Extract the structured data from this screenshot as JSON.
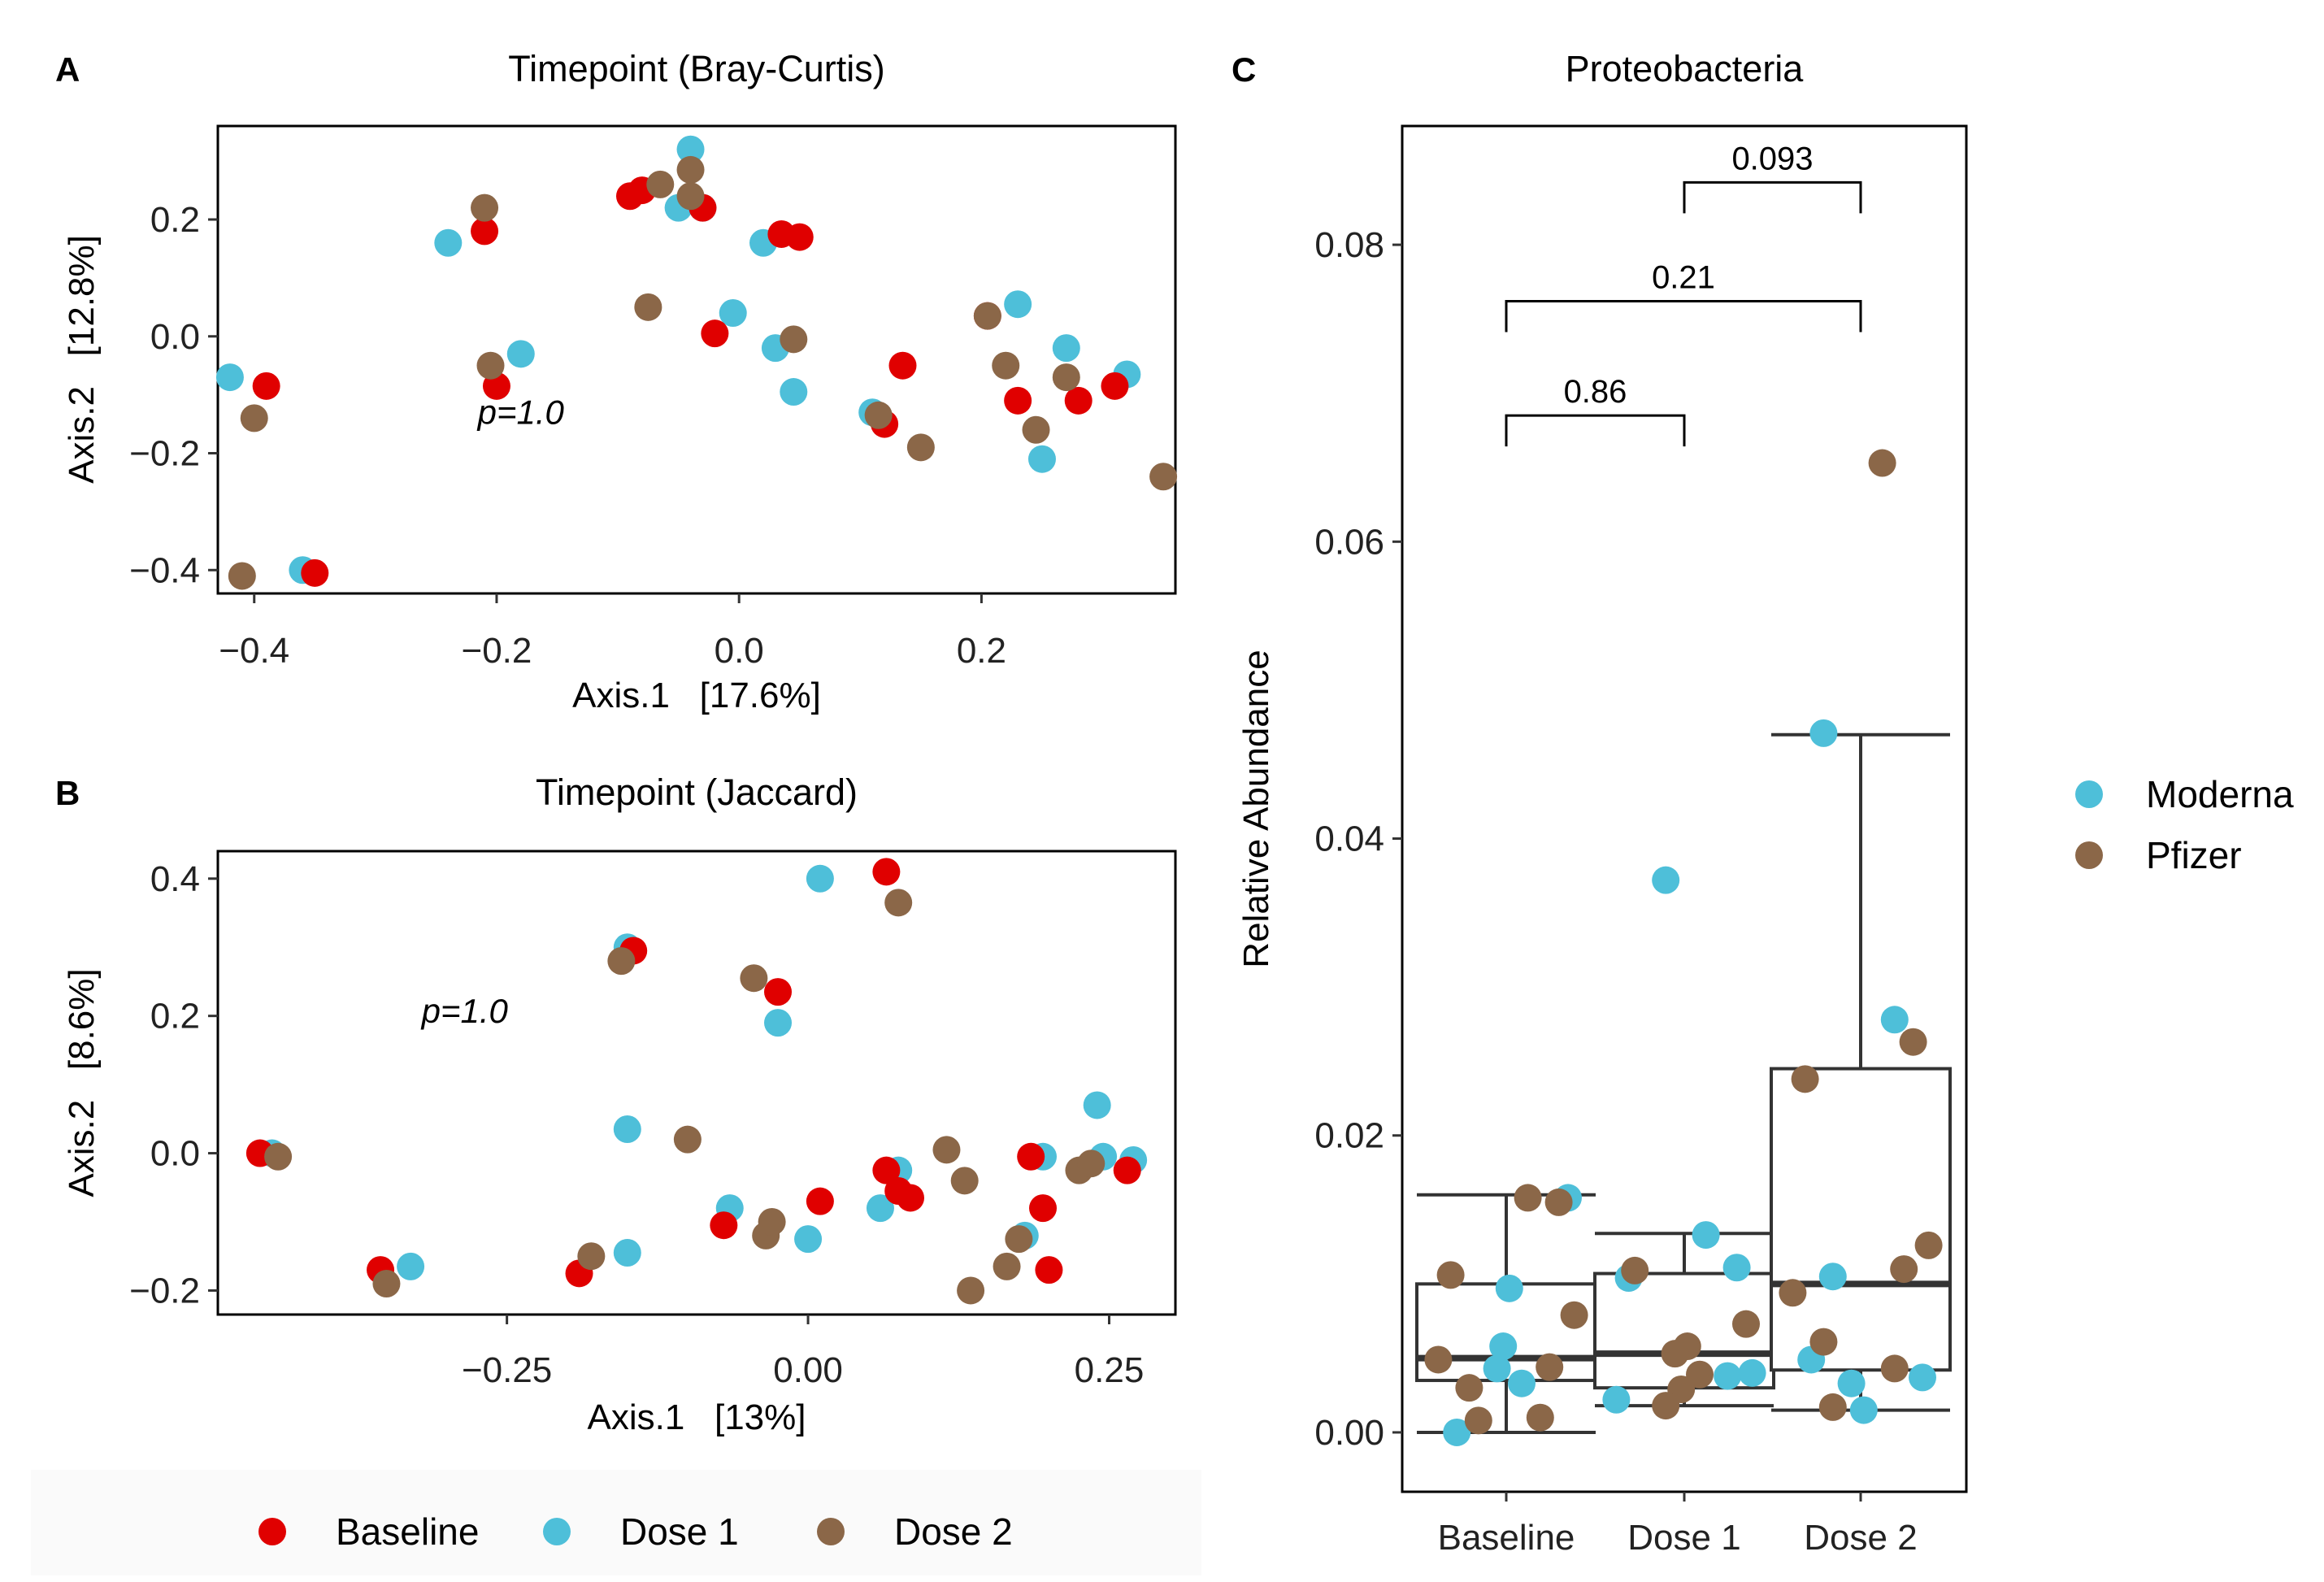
{
  "colors": {
    "Baseline": "#e00000",
    "Dose 1": "#4ebfd9",
    "Dose 2": "#8b6748",
    "Moderna": "#4ebfd9",
    "Pfizer": "#8b6748"
  },
  "legend_timepoint": [
    "Baseline",
    "Dose 1",
    "Dose 2"
  ],
  "legend_vaccine": [
    "Moderna",
    "Pfizer"
  ],
  "chart_data": [
    {
      "panel": "A",
      "type": "scatter",
      "title": "Timepoint (Bray-Curtis)",
      "xlabel": "Axis.1   [17.6%]",
      "ylabel": "Axis.2   [12.8%]",
      "xlim": [
        -0.43,
        0.36
      ],
      "ylim": [
        -0.44,
        0.36
      ],
      "xticks": [
        -0.4,
        -0.2,
        0.0,
        0.2
      ],
      "xtick_labels": [
        "−0.4",
        "−0.2",
        "0.0",
        "0.2"
      ],
      "yticks": [
        -0.4,
        -0.2,
        0.0,
        0.2
      ],
      "ytick_labels": [
        "−0.4",
        "−0.2",
        "0.0",
        "0.2"
      ],
      "annotation": "p=1.0",
      "annotation_at": [
        -0.18,
        -0.15
      ],
      "series": [
        {
          "name": "Dose 1",
          "points": [
            [
              -0.42,
              -0.07
            ],
            [
              -0.36,
              -0.4
            ],
            [
              -0.24,
              0.16
            ],
            [
              -0.18,
              -0.03
            ],
            [
              -0.04,
              0.32
            ],
            [
              -0.05,
              0.22
            ],
            [
              -0.03,
              0.22
            ],
            [
              -0.005,
              0.04
            ],
            [
              0.02,
              0.16
            ],
            [
              0.03,
              -0.02
            ],
            [
              0.045,
              -0.095
            ],
            [
              0.11,
              -0.13
            ],
            [
              0.23,
              0.055
            ],
            [
              0.27,
              -0.02
            ],
            [
              0.32,
              -0.065
            ],
            [
              0.25,
              -0.21
            ]
          ]
        },
        {
          "name": "Baseline",
          "points": [
            [
              -0.39,
              -0.085
            ],
            [
              -0.35,
              -0.405
            ],
            [
              -0.21,
              0.18
            ],
            [
              -0.2,
              -0.085
            ],
            [
              -0.09,
              0.24
            ],
            [
              -0.08,
              0.25
            ],
            [
              -0.03,
              0.22
            ],
            [
              -0.02,
              0.005
            ],
            [
              0.035,
              0.175
            ],
            [
              0.05,
              0.17
            ],
            [
              0.12,
              -0.15
            ],
            [
              0.135,
              -0.05
            ],
            [
              0.205,
              0.035
            ],
            [
              0.23,
              -0.11
            ],
            [
              0.28,
              -0.11
            ],
            [
              0.31,
              -0.085
            ]
          ]
        },
        {
          "name": "Dose 2",
          "points": [
            [
              -0.41,
              -0.41
            ],
            [
              -0.4,
              -0.14
            ],
            [
              -0.21,
              0.22
            ],
            [
              -0.205,
              -0.05
            ],
            [
              -0.075,
              0.05
            ],
            [
              -0.065,
              0.26
            ],
            [
              -0.04,
              0.24
            ],
            [
              -0.04,
              0.285
            ],
            [
              0.045,
              -0.005
            ],
            [
              0.115,
              -0.135
            ],
            [
              0.15,
              -0.19
            ],
            [
              0.205,
              0.035
            ],
            [
              0.22,
              -0.05
            ],
            [
              0.245,
              -0.16
            ],
            [
              0.27,
              -0.07
            ],
            [
              0.35,
              -0.24
            ]
          ]
        }
      ]
    },
    {
      "panel": "B",
      "type": "scatter",
      "title": "Timepoint (Jaccard)",
      "xlabel": "Axis.1   [13%]",
      "ylabel": "Axis.2   [8.6%]",
      "xlim": [
        -0.49,
        0.305
      ],
      "ylim": [
        -0.235,
        0.44
      ],
      "xticks": [
        -0.25,
        0.0,
        0.25
      ],
      "xtick_labels": [
        "−0.25",
        "0.00",
        "0.25"
      ],
      "yticks": [
        -0.2,
        0.0,
        0.2,
        0.4
      ],
      "ytick_labels": [
        "−0.2",
        "0.0",
        "0.2",
        "0.4"
      ],
      "annotation": "p=1.0",
      "annotation_at": [
        -0.285,
        0.19
      ],
      "series": [
        {
          "name": "Dose 1",
          "points": [
            [
              -0.445,
              0.0
            ],
            [
              -0.33,
              -0.165
            ],
            [
              -0.15,
              0.3
            ],
            [
              -0.15,
              0.035
            ],
            [
              -0.15,
              -0.145
            ],
            [
              -0.065,
              -0.08
            ],
            [
              -0.025,
              0.19
            ],
            [
              0.0,
              -0.125
            ],
            [
              0.01,
              0.4
            ],
            [
              0.06,
              -0.08
            ],
            [
              0.075,
              -0.025
            ],
            [
              0.18,
              -0.12
            ],
            [
              0.195,
              -0.005
            ],
            [
              0.24,
              0.07
            ],
            [
              0.245,
              -0.005
            ],
            [
              0.27,
              -0.01
            ]
          ]
        },
        {
          "name": "Baseline",
          "points": [
            [
              -0.455,
              0.0
            ],
            [
              -0.355,
              -0.17
            ],
            [
              -0.19,
              -0.175
            ],
            [
              -0.145,
              0.295
            ],
            [
              -0.07,
              -0.105
            ],
            [
              -0.025,
              0.235
            ],
            [
              0.01,
              -0.07
            ],
            [
              0.065,
              0.41
            ],
            [
              0.065,
              -0.025
            ],
            [
              0.075,
              -0.055
            ],
            [
              0.085,
              -0.065
            ],
            [
              0.185,
              -0.005
            ],
            [
              0.195,
              -0.08
            ],
            [
              0.2,
              -0.17
            ],
            [
              0.265,
              -0.025
            ]
          ]
        },
        {
          "name": "Dose 2",
          "points": [
            [
              -0.44,
              -0.005
            ],
            [
              -0.35,
              -0.19
            ],
            [
              -0.18,
              -0.15
            ],
            [
              -0.155,
              0.28
            ],
            [
              -0.1,
              0.02
            ],
            [
              -0.045,
              0.255
            ],
            [
              -0.035,
              -0.12
            ],
            [
              -0.03,
              -0.1
            ],
            [
              0.075,
              0.365
            ],
            [
              0.115,
              0.005
            ],
            [
              0.13,
              -0.04
            ],
            [
              0.135,
              -0.2
            ],
            [
              0.165,
              -0.165
            ],
            [
              0.175,
              -0.125
            ],
            [
              0.225,
              -0.025
            ],
            [
              0.235,
              -0.015
            ]
          ]
        }
      ]
    },
    {
      "panel": "C",
      "type": "box",
      "title": "Proteobacteria",
      "xlabel": "",
      "ylabel": "Relative Abundance",
      "categories": [
        "Baseline",
        "Dose 1",
        "Dose 2"
      ],
      "ylim": [
        -0.004,
        0.088
      ],
      "yticks": [
        0.0,
        0.02,
        0.04,
        0.06,
        0.08
      ],
      "ytick_labels": [
        "0.00",
        "0.02",
        "0.04",
        "0.06",
        "0.08"
      ],
      "boxes": [
        {
          "category": "Baseline",
          "whisker_low": 0.0,
          "q1": 0.0035,
          "median": 0.005,
          "q3": 0.01,
          "whisker_high": 0.016
        },
        {
          "category": "Dose 1",
          "whisker_low": 0.0018,
          "q1": 0.003,
          "median": 0.0053,
          "q3": 0.0107,
          "whisker_high": 0.0134
        },
        {
          "category": "Dose 2",
          "whisker_low": 0.0015,
          "q1": 0.0042,
          "median": 0.01,
          "q3": 0.0245,
          "whisker_high": 0.047
        }
      ],
      "comparisons": [
        {
          "from": "Baseline",
          "to": "Dose 1",
          "label": "0.86",
          "y": 0.0685
        },
        {
          "from": "Baseline",
          "to": "Dose 2",
          "label": "0.21",
          "y": 0.0762
        },
        {
          "from": "Dose 1",
          "to": "Dose 2",
          "label": "0.093",
          "y": 0.0842
        }
      ],
      "series": [
        {
          "name": "Moderna",
          "points": [
            [
              0,
              0.0
            ],
            [
              0,
              0.0158
            ],
            [
              0,
              0.0097
            ],
            [
              0,
              0.0043
            ],
            [
              0,
              0.0033
            ],
            [
              0,
              0.0058
            ],
            [
              1,
              0.0372
            ],
            [
              1,
              0.0133
            ],
            [
              1,
              0.0111
            ],
            [
              1,
              0.0104
            ],
            [
              1,
              0.004
            ],
            [
              1,
              0.0038
            ],
            [
              1,
              0.0022
            ],
            [
              2,
              0.0471
            ],
            [
              2,
              0.0278
            ],
            [
              2,
              0.0105
            ],
            [
              2,
              0.0049
            ],
            [
              2,
              0.0037
            ],
            [
              2,
              0.0015
            ],
            [
              2,
              0.0033
            ]
          ]
        },
        {
          "name": "Pfizer",
          "points": [
            [
              0,
              0.0158
            ],
            [
              0,
              0.0155
            ],
            [
              0,
              0.0106
            ],
            [
              0,
              0.0079
            ],
            [
              0,
              0.0044
            ],
            [
              0,
              0.0049
            ],
            [
              0,
              0.003
            ],
            [
              0,
              0.001
            ],
            [
              0,
              0.0008
            ],
            [
              1,
              0.0109
            ],
            [
              1,
              0.0073
            ],
            [
              1,
              0.0058
            ],
            [
              1,
              0.0053
            ],
            [
              1,
              0.0039
            ],
            [
              1,
              0.0029
            ],
            [
              1,
              0.0018
            ],
            [
              2,
              0.0653
            ],
            [
              2,
              0.0263
            ],
            [
              2,
              0.0238
            ],
            [
              2,
              0.0126
            ],
            [
              2,
              0.011
            ],
            [
              2,
              0.0094
            ],
            [
              2,
              0.0061
            ],
            [
              2,
              0.0043
            ],
            [
              2,
              0.0017
            ]
          ]
        }
      ]
    }
  ]
}
